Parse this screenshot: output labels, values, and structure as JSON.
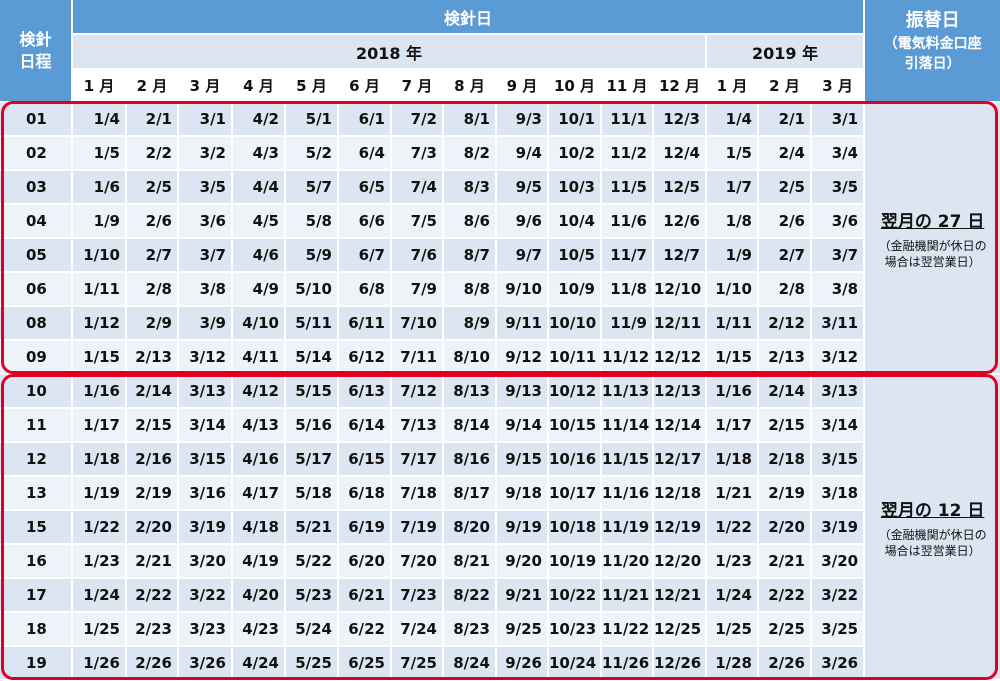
{
  "header": {
    "day_label": "検針\n日程",
    "reading_label": "検針日",
    "transfer_label": "振替日",
    "transfer_sub": "（電気料金口座\n引落日）",
    "year_2018": "2018 年",
    "year_2019": "2019 年",
    "months": [
      "1 月",
      "2 月",
      "3 月",
      "4 月",
      "5 月",
      "6 月",
      "7 月",
      "8 月",
      "9 月",
      "10 月",
      "11 月",
      "12 月",
      "1 月",
      "2 月",
      "3 月"
    ]
  },
  "groups": [
    {
      "transfer_main": "翌月の 27 日",
      "transfer_note": "（金融機関が休日の\n場合は翌営業日）",
      "rows": [
        {
          "day": "01",
          "dates": [
            "1/4",
            "2/1",
            "3/1",
            "4/2",
            "5/1",
            "6/1",
            "7/2",
            "8/1",
            "9/3",
            "10/1",
            "11/1",
            "12/3",
            "1/4",
            "2/1",
            "3/1"
          ]
        },
        {
          "day": "02",
          "dates": [
            "1/5",
            "2/2",
            "3/2",
            "4/3",
            "5/2",
            "6/4",
            "7/3",
            "8/2",
            "9/4",
            "10/2",
            "11/2",
            "12/4",
            "1/5",
            "2/4",
            "3/4"
          ]
        },
        {
          "day": "03",
          "dates": [
            "1/6",
            "2/5",
            "3/5",
            "4/4",
            "5/7",
            "6/5",
            "7/4",
            "8/3",
            "9/5",
            "10/3",
            "11/5",
            "12/5",
            "1/7",
            "2/5",
            "3/5"
          ]
        },
        {
          "day": "04",
          "dates": [
            "1/9",
            "2/6",
            "3/6",
            "4/5",
            "5/8",
            "6/6",
            "7/5",
            "8/6",
            "9/6",
            "10/4",
            "11/6",
            "12/6",
            "1/8",
            "2/6",
            "3/6"
          ]
        },
        {
          "day": "05",
          "dates": [
            "1/10",
            "2/7",
            "3/7",
            "4/6",
            "5/9",
            "6/7",
            "7/6",
            "8/7",
            "9/7",
            "10/5",
            "11/7",
            "12/7",
            "1/9",
            "2/7",
            "3/7"
          ]
        },
        {
          "day": "06",
          "dates": [
            "1/11",
            "2/8",
            "3/8",
            "4/9",
            "5/10",
            "6/8",
            "7/9",
            "8/8",
            "9/10",
            "10/9",
            "11/8",
            "12/10",
            "1/10",
            "2/8",
            "3/8"
          ]
        },
        {
          "day": "08",
          "dates": [
            "1/12",
            "2/9",
            "3/9",
            "4/10",
            "5/11",
            "6/11",
            "7/10",
            "8/9",
            "9/11",
            "10/10",
            "11/9",
            "12/11",
            "1/11",
            "2/12",
            "3/11"
          ]
        },
        {
          "day": "09",
          "dates": [
            "1/15",
            "2/13",
            "3/12",
            "4/11",
            "5/14",
            "6/12",
            "7/11",
            "8/10",
            "9/12",
            "10/11",
            "11/12",
            "12/12",
            "1/15",
            "2/13",
            "3/12"
          ]
        }
      ]
    },
    {
      "transfer_main": "翌月の 12 日",
      "transfer_note": "（金融機関が休日の\n場合は翌営業日）",
      "rows": [
        {
          "day": "10",
          "dates": [
            "1/16",
            "2/14",
            "3/13",
            "4/12",
            "5/15",
            "6/13",
            "7/12",
            "8/13",
            "9/13",
            "10/12",
            "11/13",
            "12/13",
            "1/16",
            "2/14",
            "3/13"
          ]
        },
        {
          "day": "11",
          "dates": [
            "1/17",
            "2/15",
            "3/14",
            "4/13",
            "5/16",
            "6/14",
            "7/13",
            "8/14",
            "9/14",
            "10/15",
            "11/14",
            "12/14",
            "1/17",
            "2/15",
            "3/14"
          ]
        },
        {
          "day": "12",
          "dates": [
            "1/18",
            "2/16",
            "3/15",
            "4/16",
            "5/17",
            "6/15",
            "7/17",
            "8/16",
            "9/15",
            "10/16",
            "11/15",
            "12/17",
            "1/18",
            "2/18",
            "3/15"
          ]
        },
        {
          "day": "13",
          "dates": [
            "1/19",
            "2/19",
            "3/16",
            "4/17",
            "5/18",
            "6/18",
            "7/18",
            "8/17",
            "9/18",
            "10/17",
            "11/16",
            "12/18",
            "1/21",
            "2/19",
            "3/18"
          ]
        },
        {
          "day": "15",
          "dates": [
            "1/22",
            "2/20",
            "3/19",
            "4/18",
            "5/21",
            "6/19",
            "7/19",
            "8/20",
            "9/19",
            "10/18",
            "11/19",
            "12/19",
            "1/22",
            "2/20",
            "3/19"
          ]
        },
        {
          "day": "16",
          "dates": [
            "1/23",
            "2/21",
            "3/20",
            "4/19",
            "5/22",
            "6/20",
            "7/20",
            "8/21",
            "9/20",
            "10/19",
            "11/20",
            "12/20",
            "1/23",
            "2/21",
            "3/20"
          ]
        },
        {
          "day": "17",
          "dates": [
            "1/24",
            "2/22",
            "3/22",
            "4/20",
            "5/23",
            "6/21",
            "7/23",
            "8/22",
            "9/21",
            "10/22",
            "11/21",
            "12/21",
            "1/24",
            "2/22",
            "3/22"
          ]
        },
        {
          "day": "18",
          "dates": [
            "1/25",
            "2/23",
            "3/23",
            "4/23",
            "5/24",
            "6/22",
            "7/24",
            "8/23",
            "9/25",
            "10/23",
            "11/22",
            "12/25",
            "1/25",
            "2/25",
            "3/25"
          ]
        },
        {
          "day": "19",
          "dates": [
            "1/26",
            "2/26",
            "3/26",
            "4/24",
            "5/25",
            "6/25",
            "7/25",
            "8/24",
            "9/26",
            "10/24",
            "11/26",
            "12/26",
            "1/28",
            "2/26",
            "3/26"
          ]
        }
      ]
    }
  ]
}
